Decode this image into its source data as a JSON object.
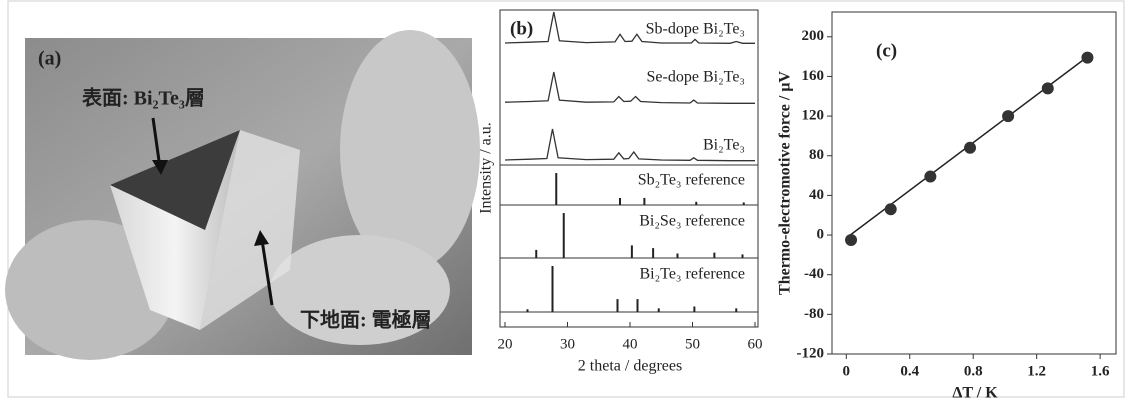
{
  "photo": {
    "label": "(a)",
    "top_annotation": "表面: Bi₂Te₃層",
    "bottom_annotation": "下地面: 電極層"
  },
  "chart_data": [
    {
      "type": "xrd",
      "label": "(b)",
      "xlabel": "2 theta / degrees",
      "ylabel": "Intensity / a.u.",
      "xlim": [
        20,
        60
      ],
      "xticks": [
        20,
        30,
        40,
        50,
        60
      ],
      "series": [
        {
          "name": "Sb-dope Bi₂Te₃",
          "x": [
            20,
            24,
            26.9,
            27.8,
            28.7,
            33,
            37.6,
            38.4,
            39.2,
            40.3,
            41.1,
            41.9,
            45,
            49.8,
            50.4,
            51,
            56,
            57,
            58,
            60
          ],
          "values": [
            14,
            16,
            18,
            100,
            20,
            15,
            17,
            38,
            18,
            19,
            38,
            18,
            14,
            14,
            24,
            14,
            13,
            18,
            13,
            13
          ]
        },
        {
          "name": "Se-dope Bi₂Te₃",
          "x": [
            20,
            24,
            26.9,
            27.8,
            28.7,
            33,
            37.4,
            38.2,
            39,
            40.1,
            40.9,
            41.7,
            45,
            49.6,
            50.2,
            50.8,
            56,
            60
          ],
          "values": [
            16,
            18,
            20,
            100,
            22,
            16,
            17,
            32,
            18,
            19,
            32,
            18,
            15,
            14,
            22,
            14,
            13,
            13
          ]
        },
        {
          "name": "Bi₂Te₃",
          "x": [
            20,
            24,
            26.7,
            27.6,
            28.5,
            33,
            37.4,
            38.2,
            39,
            39.8,
            40.6,
            41.4,
            45,
            49.6,
            50.2,
            50.8,
            56,
            60
          ],
          "values": [
            14,
            16,
            18,
            100,
            20,
            15,
            16,
            34,
            17,
            18,
            36,
            17,
            14,
            13,
            20,
            13,
            12,
            12
          ]
        }
      ],
      "references": [
        {
          "name": "Sb₂Te₃ reference",
          "x": [
            28.2,
            38.4,
            42.3,
            50.6,
            58.2
          ],
          "values": [
            100,
            22,
            22,
            10,
            8
          ]
        },
        {
          "name": "Bi₂Se₃ reference",
          "x": [
            25,
            29.4,
            40.3,
            43.7,
            47.6,
            53.5,
            58
          ],
          "values": [
            18,
            100,
            28,
            22,
            10,
            12,
            8
          ]
        },
        {
          "name": "Bi₂Te₃ reference",
          "x": [
            23.6,
            27.6,
            38,
            41.2,
            44.6,
            50.3,
            57
          ],
          "values": [
            6,
            100,
            28,
            28,
            8,
            12,
            8
          ]
        }
      ]
    },
    {
      "type": "scatter",
      "label": "(c)",
      "xlabel": "ΔT / K",
      "ylabel": "Thermo-electromotive force / μV",
      "xlim": [
        -0.09,
        1.7
      ],
      "xticks": [
        0,
        0.4,
        0.8,
        1.2,
        1.6
      ],
      "ylim": [
        -120,
        225
      ],
      "yticks": [
        -120,
        -80,
        -40,
        0,
        40,
        80,
        120,
        160,
        200
      ],
      "series": [
        {
          "x": [
            0.03,
            0.28,
            0.53,
            0.78,
            1.02,
            1.27,
            1.52
          ],
          "values": [
            -5,
            26,
            59,
            88,
            120,
            148,
            179
          ],
          "color": "#333333"
        }
      ],
      "fit": {
        "x": [
          0,
          1.53
        ],
        "values": [
          -3,
          181
        ]
      }
    }
  ]
}
